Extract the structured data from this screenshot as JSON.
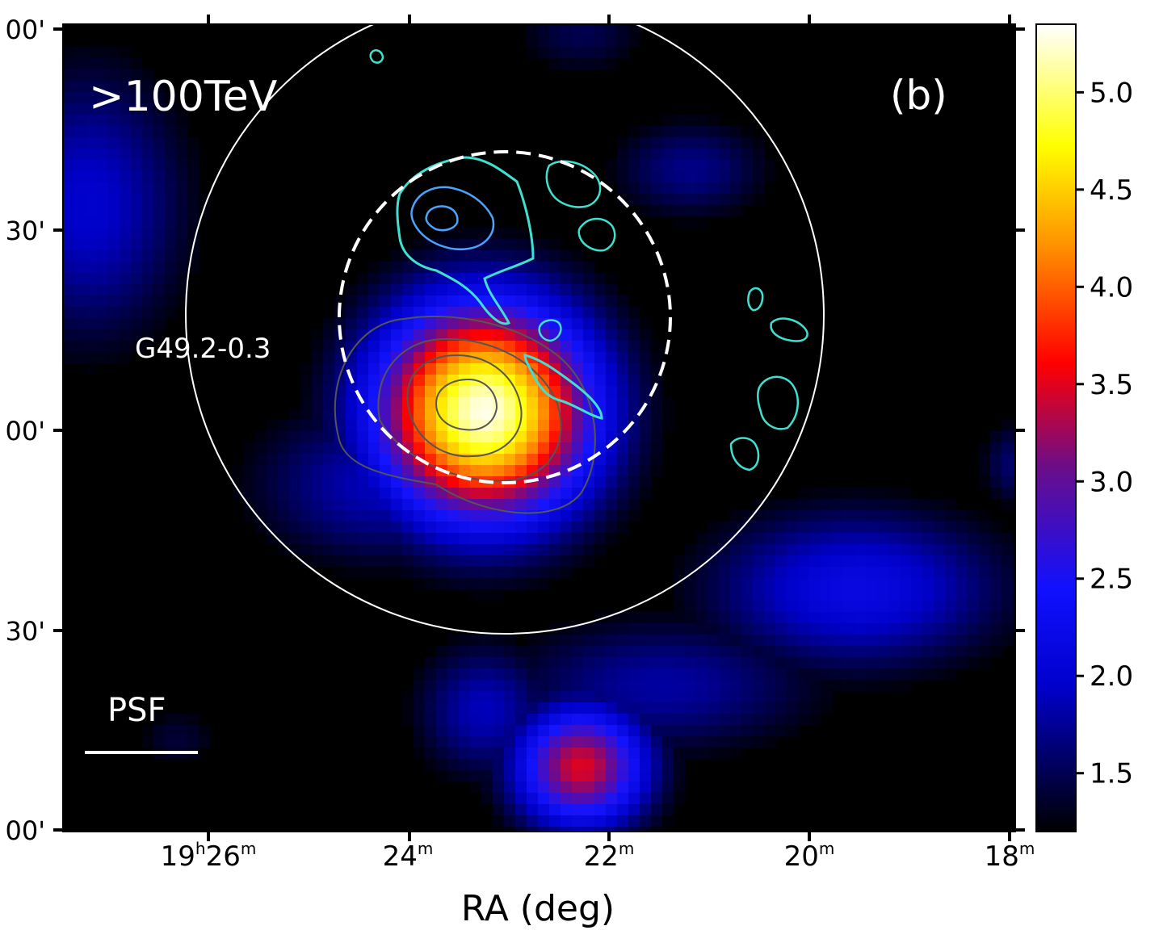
{
  "chart_data": {
    "type": "heatmap",
    "panel_label": "(b)",
    "energy_label": ">100TeV",
    "source_label": "G49.2-0.3",
    "psf_label": "PSF",
    "xlabel": "RA (deg)",
    "ylabel": "",
    "x_ticks": [
      {
        "h": "19",
        "m": "26"
      },
      {
        "h": "",
        "m": "24"
      },
      {
        "h": "",
        "m": "22"
      },
      {
        "h": "",
        "m": "20"
      },
      {
        "h": "",
        "m": "18"
      }
    ],
    "y_ticks": [
      "00'",
      "30'",
      "00'",
      "30'",
      "00'"
    ],
    "colorbar": {
      "ticks": [
        "5.0",
        "4.5",
        "4.0",
        "3.5",
        "3.0",
        "2.5",
        "2.0",
        "1.5"
      ],
      "range": [
        1.2,
        5.35
      ],
      "colormap": [
        "#000000",
        "#0000ff",
        "#ff0000",
        "#ffff00",
        "#ffffff"
      ]
    },
    "blobs": [
      {
        "name": "main-source",
        "peak": 5.3
      },
      {
        "name": "southern-source",
        "peak": 3.5
      },
      {
        "name": "east-blue",
        "peak": 2.2
      },
      {
        "name": "north-blue",
        "peak": 1.7
      },
      {
        "name": "southwest-blue",
        "peak": 2.0
      }
    ],
    "overlays": {
      "large_circle_color": "#ffffff",
      "dashed_circle_color": "#ffffff",
      "radio_contour_color": "#40e0d0",
      "gray_contour_color": "#555555"
    }
  }
}
